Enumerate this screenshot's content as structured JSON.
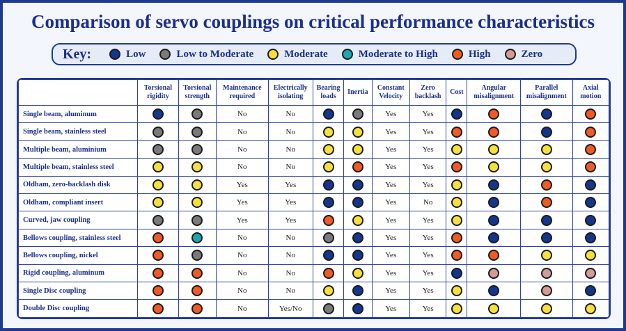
{
  "title": "Comparison of servo couplings on critical performance characteristics",
  "colors": {
    "Low": "#13378f",
    "Low to Moderate": "#7a7a7a",
    "Moderate": "#f7e03a",
    "Moderate to High": "#1aa6b3",
    "High": "#f05a23",
    "Zero": "#d49a95"
  },
  "key": {
    "label": "Key:",
    "items": [
      "Low",
      "Low to Moderate",
      "Moderate",
      "Moderate to High",
      "High",
      "Zero"
    ]
  },
  "chart_data": {
    "type": "table",
    "columns": [
      "Torsional rigidity",
      "Torsional strength",
      "Maintenance required",
      "Electrically isolating",
      "Bearing loads",
      "Inertia",
      "Constant Velocity",
      "Zero backlash",
      "Cost",
      "Angular misalignment",
      "Parallel misalignment",
      "Axial motion"
    ],
    "rows": [
      {
        "name": "Single beam, aluminum",
        "values": [
          "Low",
          "Low to Moderate",
          "No",
          "No",
          "Low",
          "Low to Moderate",
          "Yes",
          "Yes",
          "Low",
          "High",
          "Low",
          "High"
        ]
      },
      {
        "name": "Single beam, stainless steel",
        "values": [
          "Low to Moderate",
          "Low to Moderate",
          "No",
          "No",
          "Moderate",
          "Moderate",
          "Yes",
          "Yes",
          "High",
          "High",
          "Low",
          "High"
        ]
      },
      {
        "name": "Multiple beam, aluminium",
        "values": [
          "Low to Moderate",
          "Low to Moderate",
          "No",
          "No",
          "Moderate",
          "Moderate",
          "Yes",
          "Yes",
          "Moderate",
          "Moderate",
          "Moderate",
          "High"
        ]
      },
      {
        "name": "Multiple beam, stainless steel",
        "values": [
          "Moderate",
          "Moderate",
          "No",
          "No",
          "Moderate",
          "High",
          "Yes",
          "Yes",
          "High",
          "Moderate",
          "Moderate",
          "High"
        ]
      },
      {
        "name": "Oldham, zero-backlash disk",
        "values": [
          "Moderate",
          "Moderate",
          "Yes",
          "Yes",
          "Low",
          "Low",
          "Yes",
          "Yes",
          "Moderate",
          "Low",
          "High",
          "Low"
        ]
      },
      {
        "name": "Oldham, compliant insert",
        "values": [
          "Moderate",
          "Moderate",
          "Yes",
          "Yes",
          "Low",
          "Low",
          "Yes",
          "No",
          "Moderate",
          "Low",
          "High",
          "Low"
        ]
      },
      {
        "name": "Curved, jaw coupling",
        "values": [
          "Low to Moderate",
          "Low to Moderate",
          "Yes",
          "Yes",
          "High",
          "Moderate",
          "Yes",
          "Yes",
          "Moderate",
          "Low",
          "Low",
          "Low"
        ]
      },
      {
        "name": "Bellows coupling, stainless steel",
        "values": [
          "High",
          "Moderate to High",
          "No",
          "No",
          "Low to Moderate",
          "Low",
          "Yes",
          "Yes",
          "High",
          "Low",
          "Low",
          "Low"
        ]
      },
      {
        "name": "Bellows coupling, nickel",
        "values": [
          "High",
          "Low to Moderate",
          "No",
          "No",
          "Low",
          "Low",
          "Yes",
          "Yes",
          "High",
          "High",
          "Moderate",
          "Moderate"
        ]
      },
      {
        "name": "Rigid coupling, aluminum",
        "values": [
          "High",
          "High",
          "No",
          "No",
          "High",
          "Moderate",
          "Yes",
          "Yes",
          "Low",
          "Zero",
          "Zero",
          "Zero"
        ]
      },
      {
        "name": "Single Disc coupling",
        "values": [
          "High",
          "High",
          "No",
          "No",
          "Moderate",
          "Low",
          "Yes",
          "Yes",
          "Moderate",
          "Low",
          "Zero",
          "Low"
        ]
      },
      {
        "name": "Double Disc coupling",
        "values": [
          "High",
          "High",
          "No",
          "Yes/No",
          "Low to Moderate",
          "Low",
          "Yes",
          "Yes",
          "Moderate",
          "Moderate",
          "Moderate",
          "Moderate"
        ]
      }
    ]
  }
}
